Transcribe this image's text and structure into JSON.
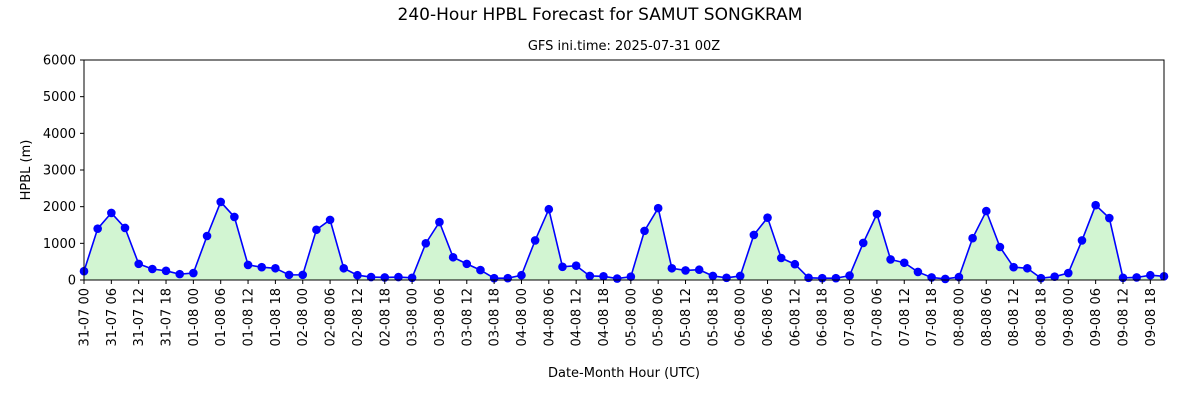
{
  "chart_data": {
    "type": "line",
    "title": "240-Hour HPBL Forecast for SAMUT SONGKRAM",
    "subtitle": "GFS ini.time: 2025-07-31 00Z",
    "xlabel": "Date-Month Hour (UTC)",
    "ylabel": "HPBL (m)",
    "ylim": [
      0,
      6000
    ],
    "yticks": [
      0,
      1000,
      2000,
      3000,
      4000,
      5000,
      6000
    ],
    "x_step_hours": 3,
    "xticks": [
      "31-07 00",
      "31-07 06",
      "31-07 12",
      "31-07 18",
      "01-08 00",
      "01-08 06",
      "01-08 12",
      "01-08 18",
      "02-08 00",
      "02-08 06",
      "02-08 12",
      "02-08 18",
      "03-08 00",
      "03-08 06",
      "03-08 12",
      "03-08 18",
      "04-08 00",
      "04-08 06",
      "04-08 12",
      "04-08 18",
      "05-08 00",
      "05-08 06",
      "05-08 12",
      "05-08 18",
      "06-08 00",
      "06-08 06",
      "06-08 12",
      "06-08 18",
      "07-08 00",
      "07-08 06",
      "07-08 12",
      "07-08 18",
      "08-08 00",
      "08-08 06",
      "08-08 12",
      "08-08 18",
      "09-08 00",
      "09-08 06",
      "09-08 12",
      "09-08 18"
    ],
    "series": [
      {
        "values": [
          240,
          1400,
          1830,
          1420,
          440,
          300,
          250,
          160,
          190,
          1200,
          2130,
          1720,
          410,
          350,
          320,
          140,
          140,
          1370,
          1640,
          320,
          130,
          80,
          70,
          80,
          60,
          1000,
          1580,
          620,
          440,
          270,
          50,
          50,
          130,
          1080,
          1930,
          360,
          390,
          110,
          100,
          40,
          90,
          1340,
          1960,
          320,
          260,
          280,
          110,
          60,
          110,
          1230,
          1700,
          600,
          430,
          60,
          50,
          50,
          120,
          1010,
          1800,
          560,
          470,
          220,
          70,
          30,
          80,
          1140,
          1880,
          900,
          350,
          320,
          50,
          90,
          190,
          1080,
          2040,
          1690,
          60,
          70,
          130,
          100
        ],
        "color": "#0000ff",
        "marker": "circle",
        "fill": "#d2f5d2"
      }
    ],
    "grid": false,
    "legend": "none"
  }
}
